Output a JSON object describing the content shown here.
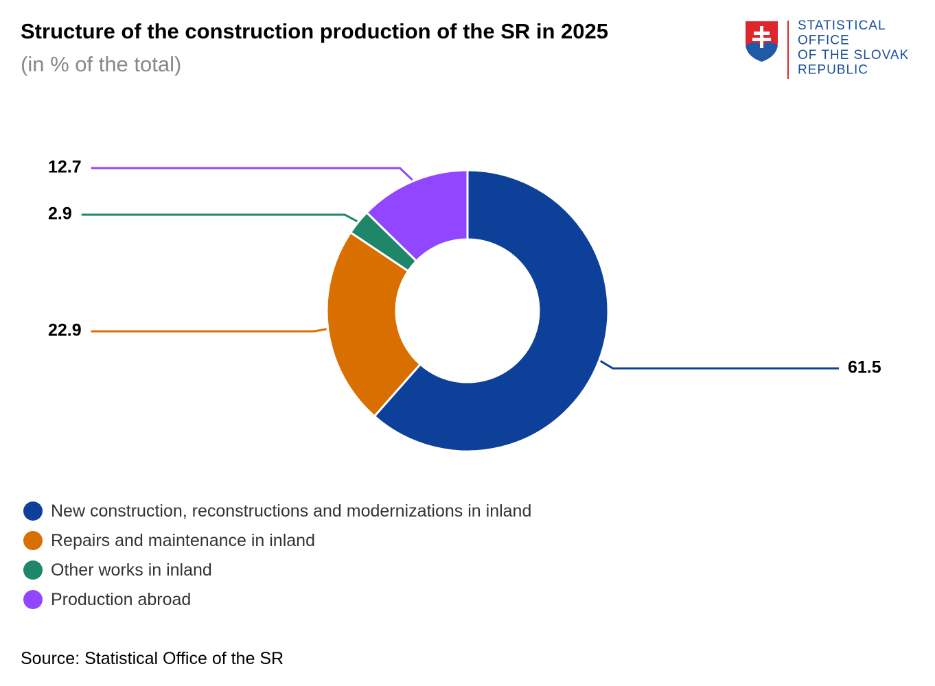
{
  "chart_data": {
    "type": "donut",
    "title": "Structure of the construction production of the SR in 2025",
    "subtitle": "(in % of the total)",
    "categories": [
      "New construction, reconstructions and modernizations in inland",
      "Repairs and maintenance in inland",
      "Other works in inland",
      "Production abroad"
    ],
    "values": [
      61.5,
      22.9,
      2.9,
      12.7
    ],
    "colors": [
      "#0d4199",
      "#d86f00",
      "#1e8669",
      "#9146ff"
    ],
    "source": "Source: Statistical Office of the SR"
  },
  "logo": {
    "lines": [
      "STATISTICAL",
      "OFFICE",
      "OF THE SLOVAK",
      "REPUBLIC"
    ]
  }
}
